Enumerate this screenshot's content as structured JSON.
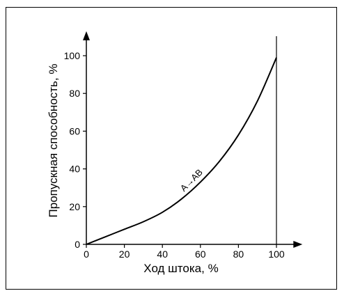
{
  "chart_data": {
    "type": "line",
    "xlabel": "Ход штока, %",
    "ylabel": "Пропускная способность, %",
    "xlim": [
      0,
      110
    ],
    "ylim": [
      0,
      110
    ],
    "x_ticks": [
      0,
      20,
      40,
      60,
      80,
      100
    ],
    "y_ticks": [
      0,
      20,
      40,
      60,
      80,
      100
    ],
    "grid": false,
    "legend": "none",
    "series": [
      {
        "name": "A→AB",
        "x": [
          0,
          10,
          20,
          30,
          40,
          50,
          60,
          70,
          80,
          90,
          100
        ],
        "y": [
          0,
          4,
          8,
          12,
          17,
          24,
          33,
          44,
          58,
          76,
          99
        ]
      }
    ],
    "annotations": [
      {
        "text": "A→AB",
        "x": 55,
        "y": 33
      }
    ],
    "reference_lines": [
      {
        "x": 100
      }
    ],
    "colors": {
      "line": "#000000",
      "background": "#ffffff"
    }
  }
}
